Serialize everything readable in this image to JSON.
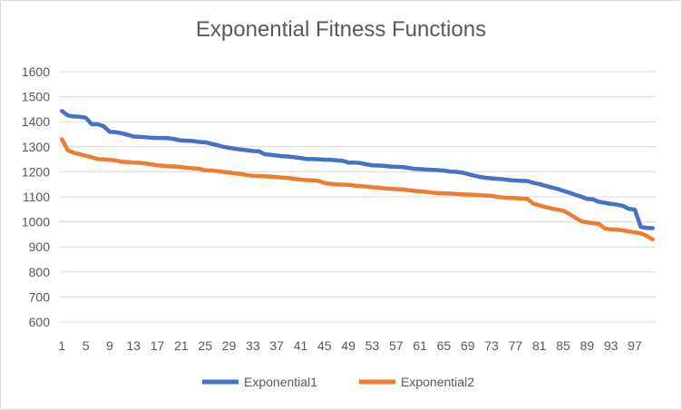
{
  "chart_data": {
    "type": "line",
    "title": "Exponential Fitness Functions",
    "xlabel": "",
    "ylabel": "",
    "ylim": [
      600,
      1600
    ],
    "yticks": [
      600,
      700,
      800,
      900,
      1000,
      1100,
      1200,
      1300,
      1400,
      1500,
      1600
    ],
    "xtick_labels": [
      "1",
      "5",
      "9",
      "13",
      "17",
      "21",
      "25",
      "29",
      "33",
      "37",
      "41",
      "45",
      "49",
      "53",
      "57",
      "61",
      "65",
      "69",
      "73",
      "77",
      "81",
      "85",
      "89",
      "93",
      "97"
    ],
    "grid": true,
    "legend_position": "bottom",
    "x": [
      1,
      2,
      3,
      4,
      5,
      6,
      7,
      8,
      9,
      10,
      11,
      12,
      13,
      14,
      15,
      16,
      17,
      18,
      19,
      20,
      21,
      22,
      23,
      24,
      25,
      26,
      27,
      28,
      29,
      30,
      31,
      32,
      33,
      34,
      35,
      36,
      37,
      38,
      39,
      40,
      41,
      42,
      43,
      44,
      45,
      46,
      47,
      48,
      49,
      50,
      51,
      52,
      53,
      54,
      55,
      56,
      57,
      58,
      59,
      60,
      61,
      62,
      63,
      64,
      65,
      66,
      67,
      68,
      69,
      70,
      71,
      72,
      73,
      74,
      75,
      76,
      77,
      78,
      79,
      80,
      81,
      82,
      83,
      84,
      85,
      86,
      87,
      88,
      89,
      90,
      91,
      92,
      93,
      94,
      95,
      96,
      97,
      98,
      99,
      100
    ],
    "series": [
      {
        "name": "Exponential1",
        "color": "#4472c4",
        "values": [
          1443,
          1425,
          1421,
          1420,
          1416,
          1390,
          1390,
          1382,
          1360,
          1358,
          1354,
          1348,
          1341,
          1340,
          1338,
          1336,
          1335,
          1335,
          1334,
          1330,
          1325,
          1324,
          1323,
          1319,
          1318,
          1312,
          1307,
          1300,
          1296,
          1292,
          1289,
          1286,
          1283,
          1282,
          1270,
          1268,
          1265,
          1262,
          1261,
          1258,
          1255,
          1251,
          1251,
          1250,
          1248,
          1248,
          1246,
          1244,
          1237,
          1237,
          1235,
          1230,
          1226,
          1225,
          1224,
          1221,
          1220,
          1219,
          1216,
          1212,
          1211,
          1209,
          1208,
          1207,
          1205,
          1201,
          1200,
          1197,
          1191,
          1185,
          1180,
          1176,
          1174,
          1172,
          1170,
          1167,
          1165,
          1164,
          1163,
          1156,
          1151,
          1144,
          1138,
          1132,
          1124,
          1117,
          1108,
          1101,
          1092,
          1090,
          1080,
          1076,
          1072,
          1069,
          1064,
          1052,
          1049,
          980,
          976,
          975
        ]
      },
      {
        "name": "Exponential2",
        "color": "#ed7d31",
        "values": [
          1330,
          1286,
          1276,
          1270,
          1264,
          1258,
          1251,
          1250,
          1248,
          1245,
          1240,
          1239,
          1237,
          1236,
          1233,
          1230,
          1226,
          1224,
          1222,
          1221,
          1219,
          1216,
          1214,
          1212,
          1206,
          1205,
          1203,
          1200,
          1197,
          1194,
          1191,
          1187,
          1184,
          1183,
          1182,
          1181,
          1179,
          1177,
          1175,
          1172,
          1169,
          1167,
          1166,
          1164,
          1155,
          1152,
          1150,
          1149,
          1148,
          1145,
          1143,
          1141,
          1138,
          1137,
          1134,
          1132,
          1131,
          1130,
          1127,
          1124,
          1122,
          1120,
          1117,
          1115,
          1114,
          1113,
          1112,
          1110,
          1109,
          1108,
          1107,
          1105,
          1104,
          1100,
          1097,
          1096,
          1095,
          1093,
          1092,
          1073,
          1066,
          1059,
          1054,
          1049,
          1045,
          1032,
          1017,
          1003,
          998,
          995,
          992,
          973,
          970,
          969,
          966,
          962,
          958,
          954,
          944,
          930
        ]
      }
    ]
  }
}
